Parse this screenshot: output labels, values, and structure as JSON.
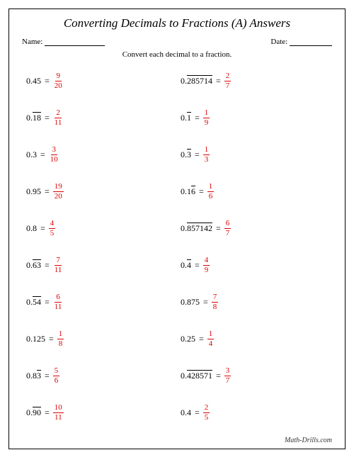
{
  "title": "Converting Decimals to Fractions (A) Answers",
  "name_label": "Name:",
  "date_label": "Date:",
  "instructions": "Convert each decimal to a fraction.",
  "footer": "Math-Drills.com",
  "colors": {
    "answer": "#d00",
    "text": "#000",
    "border": "#000"
  },
  "problems": [
    {
      "pre": "0.",
      "ov": "",
      "post": "45",
      "num": "9",
      "den": "20"
    },
    {
      "pre": "0.",
      "ov": "285714",
      "post": "",
      "num": "2",
      "den": "7"
    },
    {
      "pre": "0.",
      "ov": "18",
      "post": "",
      "num": "2",
      "den": "11"
    },
    {
      "pre": "0.",
      "ov": "1",
      "post": "",
      "num": "1",
      "den": "9"
    },
    {
      "pre": "0.",
      "ov": "",
      "post": "3",
      "num": "3",
      "den": "10"
    },
    {
      "pre": "0.",
      "ov": "3",
      "post": "",
      "num": "1",
      "den": "3"
    },
    {
      "pre": "0.",
      "ov": "",
      "post": "95",
      "num": "19",
      "den": "20"
    },
    {
      "pre": "0.1",
      "ov": "6",
      "post": "",
      "num": "1",
      "den": "6"
    },
    {
      "pre": "0.",
      "ov": "",
      "post": "8",
      "num": "4",
      "den": "5"
    },
    {
      "pre": "0.",
      "ov": "857142",
      "post": "",
      "num": "6",
      "den": "7"
    },
    {
      "pre": "0.",
      "ov": "63",
      "post": "",
      "num": "7",
      "den": "11"
    },
    {
      "pre": "0.",
      "ov": "4",
      "post": "",
      "num": "4",
      "den": "9"
    },
    {
      "pre": "0.",
      "ov": "54",
      "post": "",
      "num": "6",
      "den": "11"
    },
    {
      "pre": "0.",
      "ov": "",
      "post": "875",
      "num": "7",
      "den": "8"
    },
    {
      "pre": "0.",
      "ov": "",
      "post": "125",
      "num": "1",
      "den": "8"
    },
    {
      "pre": "0.",
      "ov": "",
      "post": "25",
      "num": "1",
      "den": "4"
    },
    {
      "pre": "0.8",
      "ov": "3",
      "post": "",
      "num": "5",
      "den": "6"
    },
    {
      "pre": "0.",
      "ov": "428571",
      "post": "",
      "num": "3",
      "den": "7"
    },
    {
      "pre": "0.",
      "ov": "90",
      "post": "",
      "num": "10",
      "den": "11"
    },
    {
      "pre": "0.",
      "ov": "",
      "post": "4",
      "num": "2",
      "den": "5"
    }
  ]
}
